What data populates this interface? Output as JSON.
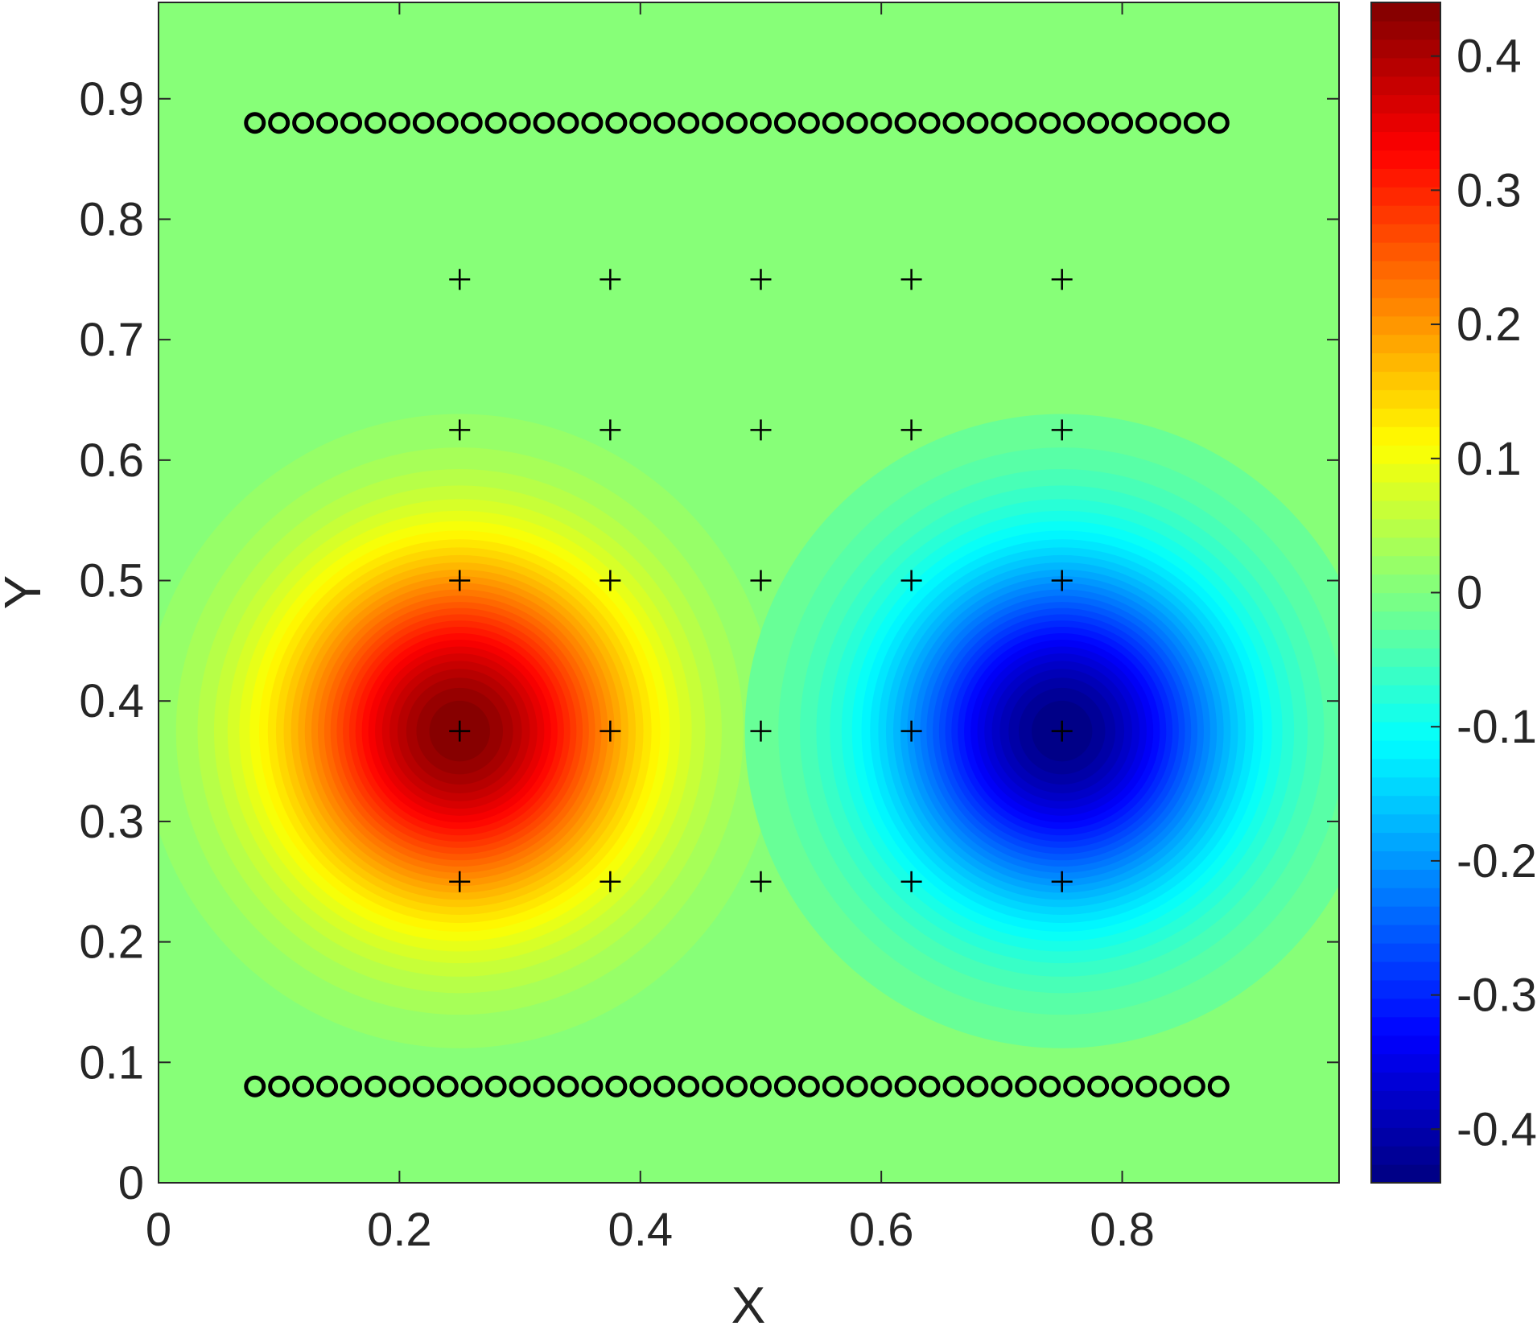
{
  "chart_data": {
    "type": "heatmap",
    "subtype": "filled-contour",
    "title": "",
    "xlabel": "X",
    "ylabel": "Y",
    "xlim": [
      0,
      0.98
    ],
    "ylim": [
      0,
      0.98
    ],
    "xticks": [
      0,
      0.2,
      0.4,
      0.6,
      0.8
    ],
    "xtick_labels": [
      "0",
      "0.2",
      "0.4",
      "0.6",
      "0.8"
    ],
    "yticks": [
      0,
      0.1,
      0.2,
      0.3,
      0.4,
      0.5,
      0.6,
      0.7,
      0.8,
      0.9
    ],
    "ytick_labels": [
      "0",
      "0.1",
      "0.2",
      "0.3",
      "0.4",
      "0.5",
      "0.6",
      "0.7",
      "0.8",
      "0.9"
    ],
    "grid": false,
    "colormap": "jet",
    "colorbar": {
      "range": [
        -0.44,
        0.44
      ],
      "ticks": [
        -0.4,
        -0.3,
        -0.2,
        -0.1,
        0,
        0.1,
        0.2,
        0.3,
        0.4
      ],
      "tick_labels": [
        "-0.4",
        "-0.3",
        "-0.2",
        "-0.1",
        "0",
        "0.1",
        "0.2",
        "0.3",
        "0.4"
      ]
    },
    "field": {
      "background_value": 0,
      "blobs": [
        {
          "center": [
            0.25,
            0.375
          ],
          "peak": 0.44
        },
        {
          "center": [
            0.75,
            0.375
          ],
          "peak": -0.44
        }
      ]
    },
    "series": [
      {
        "marker": "circle",
        "x_values": [
          0.08,
          0.1,
          0.12,
          0.14,
          0.16,
          0.18,
          0.2,
          0.22,
          0.24,
          0.26,
          0.28,
          0.3,
          0.32,
          0.34,
          0.36,
          0.38,
          0.4,
          0.42,
          0.44,
          0.46,
          0.48,
          0.5,
          0.52,
          0.54,
          0.56,
          0.58,
          0.6,
          0.62,
          0.64,
          0.66,
          0.68,
          0.7,
          0.72,
          0.74,
          0.76,
          0.78,
          0.8,
          0.82,
          0.84,
          0.86,
          0.88
        ],
        "y_values": [
          0.88
        ]
      },
      {
        "marker": "circle",
        "x_values": [
          0.08,
          0.1,
          0.12,
          0.14,
          0.16,
          0.18,
          0.2,
          0.22,
          0.24,
          0.26,
          0.28,
          0.3,
          0.32,
          0.34,
          0.36,
          0.38,
          0.4,
          0.42,
          0.44,
          0.46,
          0.48,
          0.5,
          0.52,
          0.54,
          0.56,
          0.58,
          0.6,
          0.62,
          0.64,
          0.66,
          0.68,
          0.7,
          0.72,
          0.74,
          0.76,
          0.78,
          0.8,
          0.82,
          0.84,
          0.86,
          0.88
        ],
        "y_values": [
          0.08
        ]
      },
      {
        "marker": "plus",
        "x_values": [
          0.25,
          0.375,
          0.5,
          0.625,
          0.75
        ],
        "y_values": [
          0.25,
          0.375,
          0.5,
          0.625,
          0.75
        ]
      }
    ]
  }
}
